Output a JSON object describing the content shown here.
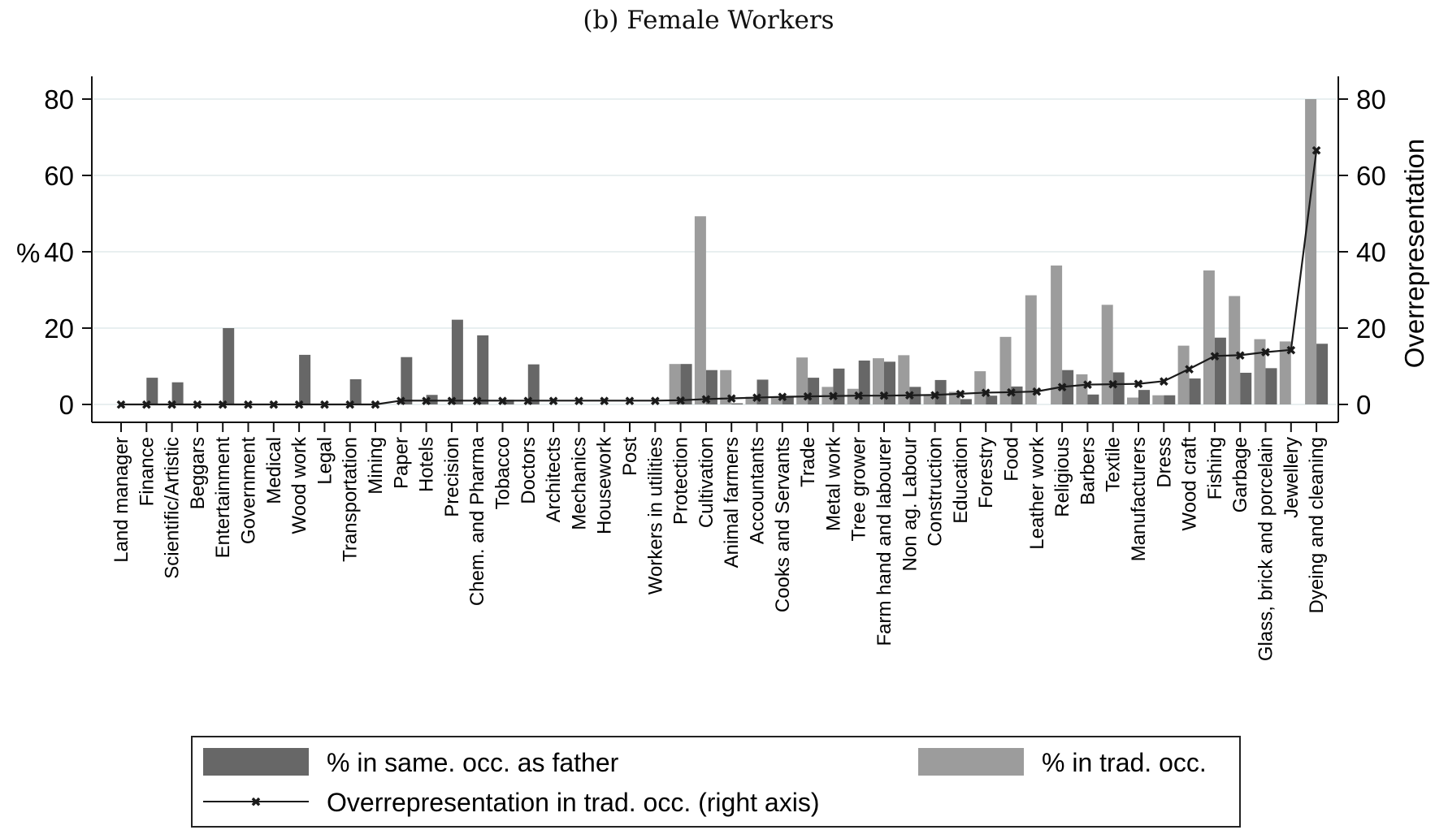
{
  "chart_data": {
    "type": "bar",
    "title": "(b) Female Workers",
    "xlabel": "",
    "ylabel": "%",
    "ylabel_right": "Overrepresentation",
    "ylim": [
      0,
      80
    ],
    "ylim_right": [
      0,
      80
    ],
    "yticks": [
      0,
      20,
      40,
      60,
      80
    ],
    "yticks_right": [
      0,
      20,
      40,
      60,
      80
    ],
    "grid": true,
    "legend_position": "bottom",
    "colors": {
      "same_occ": "#676767",
      "trad_occ": "#9c9c9c",
      "line": "#1a1a1a",
      "grid": "#e8eff0"
    },
    "categories": [
      "Land manager",
      "Finance",
      "Scientific/Artistic",
      "Beggars",
      "Entertainment",
      "Government",
      "Medical",
      "Wood work",
      "Legal",
      "Transportation",
      "Mining",
      "Paper",
      "Hotels",
      "Precision",
      "Chem. and Pharma",
      "Tobacco",
      "Doctors",
      "Architects",
      "Mechanics",
      "Housework",
      "Post",
      "Workers in utilities",
      "Protection",
      "Cultivation",
      "Animal farmers",
      "Accountants",
      "Cooks and Servants",
      "Trade",
      "Metal work",
      "Tree grower",
      "Farm hand and labourer",
      "Non ag. Labour",
      "Construction",
      "Education",
      "Forestry",
      "Food",
      "Leather work",
      "Religious",
      "Barbers",
      "Textile",
      "Manufacturers",
      "Dress",
      "Wood craft",
      "Fishing",
      "Garbage",
      "Glass, brick and porcelain",
      "Jewellery",
      "Dyeing and cleaning"
    ],
    "series": [
      {
        "name": "% in trad. occ.",
        "type": "bar",
        "axis": "left",
        "values": [
          0,
          0,
          0,
          0,
          0,
          0,
          0,
          0,
          0,
          0,
          0,
          0,
          0,
          0,
          0,
          0,
          0,
          0,
          0,
          0,
          0,
          0,
          10.6,
          49.3,
          9.0,
          2.0,
          2.0,
          12.3,
          4.6,
          4.1,
          12.1,
          12.9,
          2.3,
          3.3,
          8.7,
          17.7,
          28.6,
          36.4,
          7.9,
          26.1,
          1.8,
          2.4,
          15.4,
          35.1,
          28.4,
          17.1,
          16.5,
          80.0
        ]
      },
      {
        "name": "% in same. occ. as father",
        "type": "bar",
        "axis": "left",
        "values": [
          0,
          7.0,
          5.8,
          0,
          20.0,
          0,
          0,
          13.0,
          0,
          6.6,
          0,
          12.4,
          2.5,
          22.2,
          18.1,
          1.2,
          10.5,
          0,
          0,
          0,
          0,
          0,
          10.6,
          9.0,
          0.3,
          6.5,
          2.0,
          7.0,
          9.4,
          11.5,
          11.2,
          4.6,
          6.4,
          1.4,
          2.3,
          4.7,
          0,
          9.0,
          2.6,
          8.4,
          3.8,
          2.4,
          6.8,
          17.5,
          8.3,
          9.5,
          0,
          15.9
        ]
      },
      {
        "name": "Overrepresentation in trad. occ. (right axis)",
        "type": "line",
        "axis": "right",
        "marker": "x",
        "values": [
          0,
          0,
          0,
          0,
          0,
          0,
          0,
          0,
          0,
          0,
          0,
          1.0,
          1.0,
          1.0,
          1.0,
          1.0,
          1.0,
          1.0,
          1.0,
          1.0,
          1.0,
          1.0,
          1.1,
          1.4,
          1.6,
          1.8,
          2.0,
          2.1,
          2.2,
          2.3,
          2.3,
          2.4,
          2.5,
          2.8,
          3.1,
          3.2,
          3.4,
          4.6,
          5.2,
          5.3,
          5.4,
          6.1,
          9.3,
          12.7,
          12.9,
          13.7,
          14.3,
          66.6
        ]
      }
    ]
  },
  "legend": {
    "items": [
      {
        "label": "% in same. occ. as father",
        "kind": "bar",
        "series": 1
      },
      {
        "label": "% in trad. occ.",
        "kind": "bar",
        "series": 0
      },
      {
        "label": "Overrepresentation in trad. occ. (right axis)",
        "kind": "line",
        "series": 2
      }
    ]
  }
}
